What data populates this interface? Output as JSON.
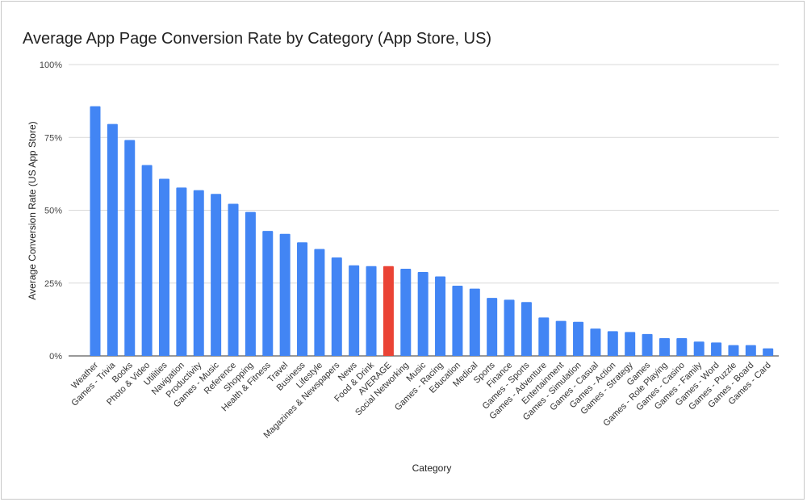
{
  "chart_data": {
    "type": "bar",
    "title": "Average App Page Conversion Rate by Category (App Store, US)",
    "xlabel": "Category",
    "ylabel": "Average Conversion Rate (US App Store)",
    "ylim": [
      0,
      100
    ],
    "yticks": [
      "0%",
      "25%",
      "50%",
      "75%",
      "100%"
    ],
    "ytick_values": [
      0,
      25,
      50,
      75,
      100
    ],
    "grid": true,
    "legend": "none",
    "colors": {
      "default": "#4285f4",
      "highlight": "#ea4335"
    },
    "highlight_category": "AVERAGE",
    "categories": [
      "Weather",
      "Games - Trivia",
      "Books",
      "Photo & Video",
      "Utilities",
      "Navigation",
      "Productivity",
      "Games - Music",
      "Reference",
      "Shopping",
      "Health & Fitness",
      "Travel",
      "Business",
      "Lifestyle",
      "Magazines & Newspapers",
      "News",
      "Food & Drink",
      "AVERAGE",
      "Social Networking",
      "Music",
      "Games - Racing",
      "Education",
      "Medical",
      "Sports",
      "Finance",
      "Games - Sports",
      "Games - Adventure",
      "Entertainment",
      "Games - Simulation",
      "Games - Casual",
      "Games - Action",
      "Games - Strategy",
      "Games",
      "Games - Role Playing",
      "Games - Casino",
      "Games - Family",
      "Games - Word",
      "Games - Puzzle",
      "Games - Board",
      "Games - Card"
    ],
    "values": [
      85.7,
      79.6,
      74.1,
      65.5,
      60.8,
      57.8,
      56.9,
      55.6,
      52.2,
      49.4,
      42.9,
      41.9,
      39.0,
      36.7,
      33.8,
      31.1,
      30.8,
      30.8,
      29.9,
      28.8,
      27.3,
      24.1,
      23.1,
      19.9,
      19.3,
      18.5,
      13.2,
      12.0,
      11.7,
      9.4,
      8.5,
      8.2,
      7.5,
      6.1,
      6.1,
      4.9,
      4.6,
      3.7,
      3.7,
      2.6
    ]
  }
}
